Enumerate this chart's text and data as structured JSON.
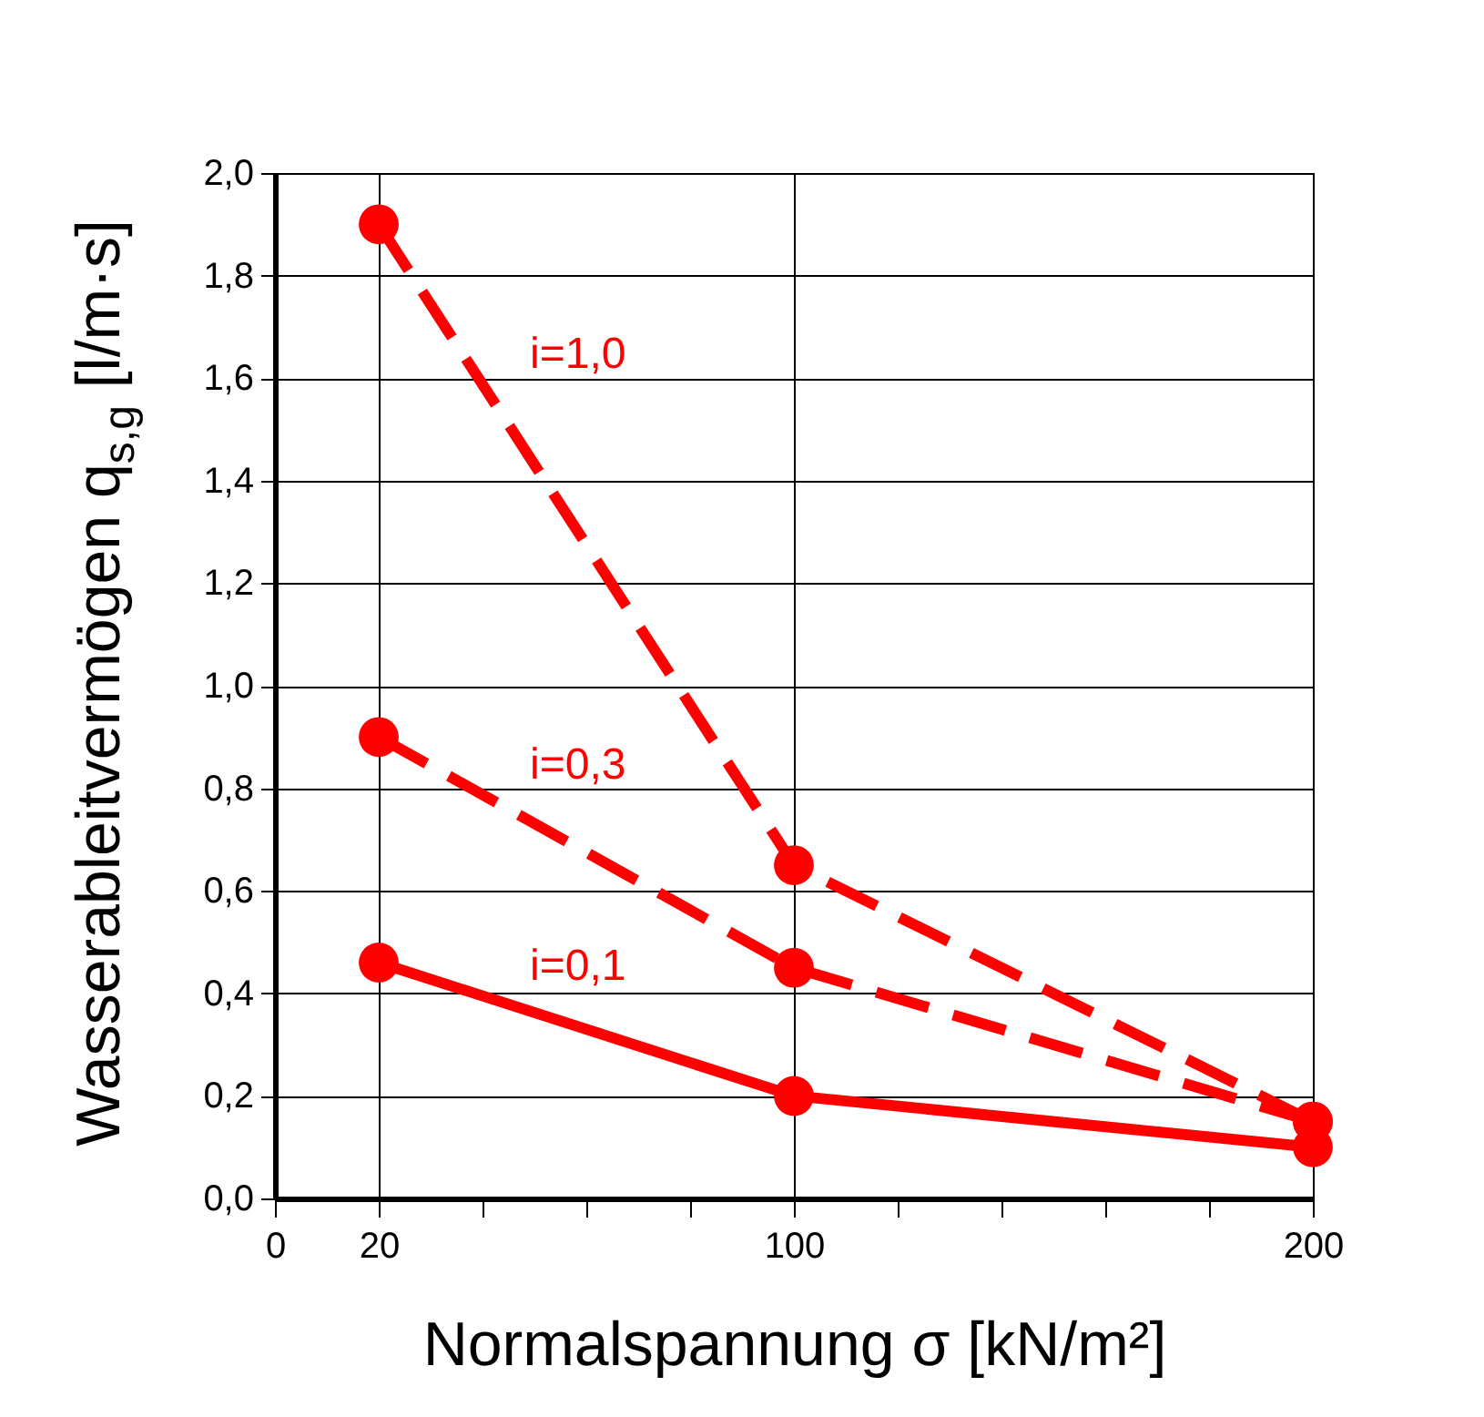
{
  "chart_data": {
    "type": "line",
    "xlabel": "Normalspannung σ  [kN/m²]",
    "ylabel": "Wasserableitvermögen  q$_{s,g}$  [l/m·s]",
    "x": [
      20,
      100,
      200
    ],
    "series": [
      {
        "name": "i=1,0",
        "color": "#ff0000",
        "values": [
          1.9,
          0.65,
          0.15
        ],
        "line_style": "dashed"
      },
      {
        "name": "i=0,3",
        "color": "#ff0000",
        "values": [
          0.9,
          0.45,
          0.15
        ],
        "line_style": "dashed"
      },
      {
        "name": "i=0,1",
        "color": "#ff0000",
        "values": [
          0.46,
          0.2,
          0.1
        ],
        "line_style": "solid"
      }
    ],
    "xlim": [
      0,
      200
    ],
    "xticks": [
      0,
      20,
      {
        "value": 40,
        "label": null
      },
      {
        "value": 60,
        "label": null
      },
      {
        "value": 80,
        "label": null
      },
      100,
      {
        "value": 120,
        "label": null
      },
      {
        "value": 140,
        "label": null
      },
      {
        "value": 160,
        "label": null
      },
      {
        "value": 180,
        "label": null
      },
      200
    ],
    "ylim": [
      0,
      2
    ],
    "yticks": [
      {
        "value": 0,
        "label": "0,0"
      },
      {
        "value": 0.2,
        "label": "0,2"
      },
      {
        "value": 0.4,
        "label": "0,4"
      },
      {
        "value": 0.6,
        "label": "0,6"
      },
      {
        "value": 0.8,
        "label": "0,8"
      },
      {
        "value": 1,
        "label": "1,0"
      },
      {
        "value": 1.2,
        "label": "1,2"
      },
      {
        "value": 1.4,
        "label": "1,4"
      },
      {
        "value": 1.6,
        "label": "1,6"
      },
      {
        "value": 1.8,
        "label": "1,8"
      },
      {
        "value": 2,
        "label": "2,0"
      }
    ],
    "grid": true,
    "marker": "circle",
    "legend": false
  }
}
